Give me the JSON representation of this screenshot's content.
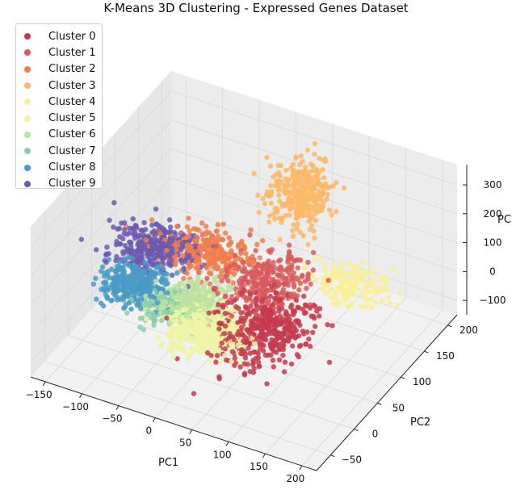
{
  "chart_data": {
    "type": "scatter",
    "title": "K-Means 3D Clustering - Expressed Genes Dataset",
    "xlabel": "PC1",
    "ylabel": "PC2",
    "zlabel": "PC",
    "xlim": [
      -170,
      220
    ],
    "ylim": [
      -80,
      220
    ],
    "zlim": [
      -150,
      370
    ],
    "xticks": [
      "−150",
      "−100",
      "−50",
      "0",
      "50",
      "100",
      "150",
      "200"
    ],
    "xtick_values": [
      -150,
      -100,
      -50,
      0,
      50,
      100,
      150,
      200
    ],
    "yticks": [
      "−50",
      "0",
      "50",
      "100",
      "150",
      "200"
    ],
    "ytick_values": [
      -50,
      0,
      50,
      100,
      150,
      200
    ],
    "zticks": [
      "−100",
      "0",
      "100",
      "200",
      "300"
    ],
    "ztick_values": [
      -100,
      0,
      100,
      200,
      300
    ],
    "grid": true,
    "legend_position": "top-left",
    "series": [
      {
        "name": "Cluster 0",
        "color": "#c53b4e",
        "center": [
          70,
          40,
          0
        ],
        "spread": [
          30,
          30,
          25
        ],
        "n": 420
      },
      {
        "name": "Cluster 1",
        "color": "#d95a5d",
        "center": [
          30,
          110,
          10
        ],
        "spread": [
          25,
          25,
          25
        ],
        "n": 260
      },
      {
        "name": "Cluster 2",
        "color": "#f07e4e",
        "center": [
          -60,
          125,
          0
        ],
        "spread": [
          30,
          18,
          10
        ],
        "n": 300
      },
      {
        "name": "Cluster 3",
        "color": "#fbb869",
        "center": [
          45,
          160,
          230
        ],
        "spread": [
          18,
          18,
          50
        ],
        "n": 320
      },
      {
        "name": "Cluster 4",
        "color": "#fbee9a",
        "center": [
          110,
          160,
          -30
        ],
        "spread": [
          25,
          15,
          10
        ],
        "n": 170
      },
      {
        "name": "Cluster 5",
        "color": "#eef4a6",
        "center": [
          10,
          15,
          -10
        ],
        "spread": [
          25,
          20,
          8
        ],
        "n": 480
      },
      {
        "name": "Cluster 6",
        "color": "#bde3a0",
        "center": [
          -30,
          55,
          -10
        ],
        "spread": [
          20,
          20,
          8
        ],
        "n": 280
      },
      {
        "name": "Cluster 7",
        "color": "#8ccfa6",
        "center": [
          -60,
          35,
          -20
        ],
        "spread": [
          18,
          15,
          8
        ],
        "n": 160
      },
      {
        "name": "Cluster 8",
        "color": "#4a9ac6",
        "center": [
          -110,
          50,
          -5
        ],
        "spread": [
          20,
          18,
          8
        ],
        "n": 320
      },
      {
        "name": "Cluster 9",
        "color": "#6b5ab0",
        "center": [
          -120,
          110,
          0
        ],
        "spread": [
          25,
          20,
          8
        ],
        "n": 360
      }
    ]
  }
}
